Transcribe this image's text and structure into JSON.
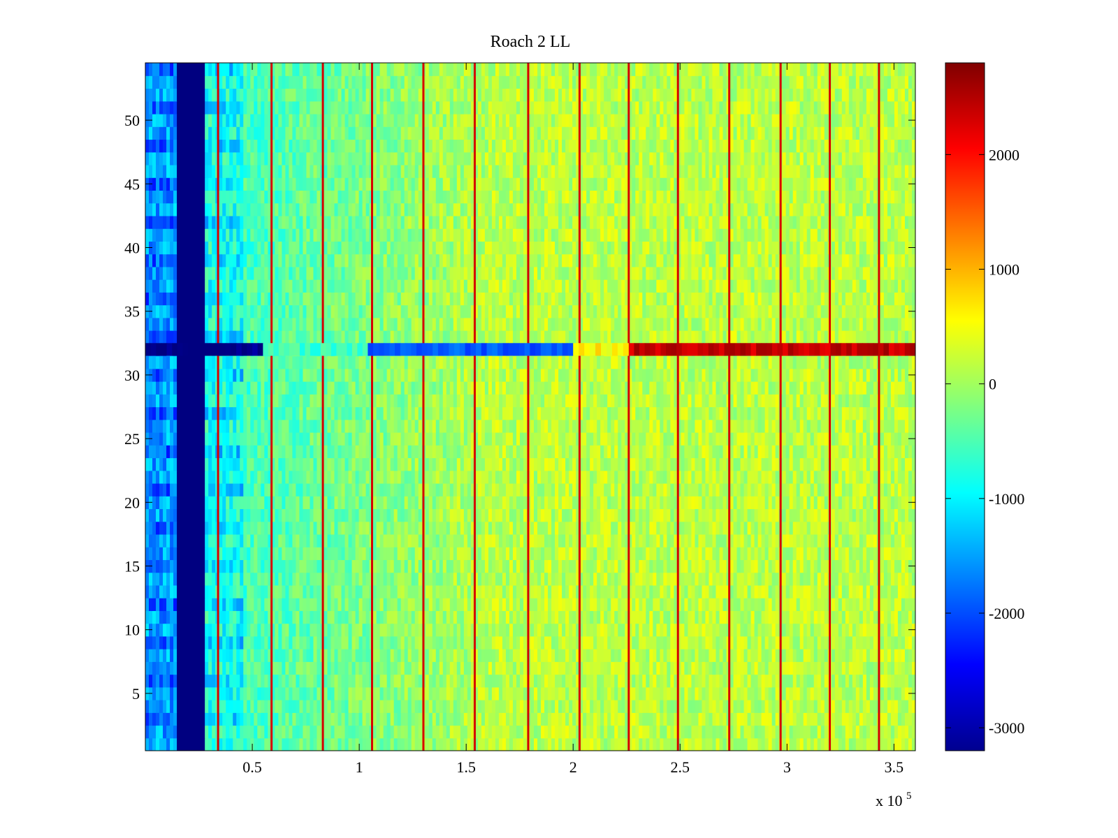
{
  "chart_data": {
    "type": "heatmap",
    "title": "Roach 2 LL",
    "xlabel": "",
    "ylabel": "",
    "x_multiplier_label": {
      "base": "x 10",
      "exponent": "5"
    },
    "xlim": [
      0,
      360000
    ],
    "ylim": [
      0.5,
      54.5
    ],
    "x_ticks": [
      {
        "value": 50000,
        "label": "0.5"
      },
      {
        "value": 100000,
        "label": "1"
      },
      {
        "value": 150000,
        "label": "1.5"
      },
      {
        "value": 200000,
        "label": "2"
      },
      {
        "value": 250000,
        "label": "2.5"
      },
      {
        "value": 300000,
        "label": "3"
      },
      {
        "value": 350000,
        "label": "3.5"
      }
    ],
    "y_ticks": [
      {
        "value": 5,
        "label": "5"
      },
      {
        "value": 10,
        "label": "10"
      },
      {
        "value": 15,
        "label": "15"
      },
      {
        "value": 20,
        "label": "20"
      },
      {
        "value": 25,
        "label": "25"
      },
      {
        "value": 30,
        "label": "30"
      },
      {
        "value": 35,
        "label": "35"
      },
      {
        "value": 40,
        "label": "40"
      },
      {
        "value": 45,
        "label": "45"
      },
      {
        "value": 50,
        "label": "50"
      }
    ],
    "colorbar": {
      "colormap": "jet",
      "clim": [
        -3200,
        2800
      ],
      "ticks": [
        {
          "value": 2000,
          "label": "2000"
        },
        {
          "value": 1000,
          "label": "1000"
        },
        {
          "value": 0,
          "label": "0"
        },
        {
          "value": -1000,
          "label": "-1000"
        },
        {
          "value": -2000,
          "label": "-2000"
        },
        {
          "value": -3000,
          "label": "-3000"
        }
      ]
    },
    "rows": 54,
    "background_level": -100,
    "vertical_stripes": [
      {
        "x_range": [
          0,
          14000
        ],
        "value": -1500,
        "description": "left blue-cyan band"
      },
      {
        "x_range": [
          14000,
          28000
        ],
        "value": -3200,
        "description": "dark blue band"
      },
      {
        "x_range": [
          28000,
          45000
        ],
        "value": -800,
        "description": "cyan transition"
      }
    ],
    "red_lines_x": [
      34000,
      59000,
      83000,
      106000,
      130000,
      154000,
      179000,
      203000,
      226000,
      249000,
      273000,
      297000,
      320000,
      343000
    ],
    "anomalous_row": {
      "row": 32,
      "segments": [
        {
          "x_range": [
            0,
            55000
          ],
          "value": -3200
        },
        {
          "x_range": [
            55000,
            104000
          ],
          "value": -600
        },
        {
          "x_range": [
            104000,
            200000
          ],
          "value": -1900
        },
        {
          "x_range": [
            200000,
            226000
          ],
          "value": 600
        },
        {
          "x_range": [
            226000,
            360000
          ],
          "value": 2400
        }
      ]
    }
  }
}
